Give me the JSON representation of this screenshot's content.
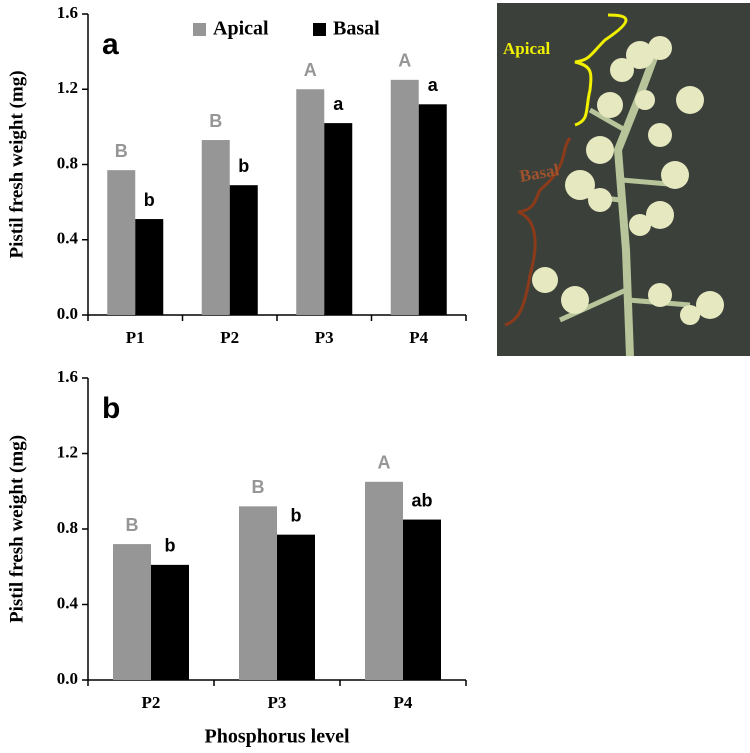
{
  "chart_data": [
    {
      "type": "bar",
      "panel_label": "a",
      "y_label": "Pistil fresh weight (mg)",
      "categories": [
        "P1",
        "P2",
        "P3",
        "P4"
      ],
      "series": [
        {
          "name": "Apical",
          "color": "#969696",
          "values": [
            0.77,
            0.93,
            1.2,
            1.25
          ],
          "letters": [
            "B",
            "B",
            "A",
            "A"
          ]
        },
        {
          "name": "Basal",
          "color": "#000000",
          "values": [
            0.51,
            0.69,
            1.02,
            1.12
          ],
          "letters": [
            "b",
            "b",
            "a",
            "a"
          ]
        }
      ],
      "ylim": [
        0,
        1.6
      ],
      "yticks": [
        {
          "value": 0,
          "label": "0.0"
        },
        0.4,
        0.8,
        1.2,
        1.6
      ],
      "legend": "top"
    },
    {
      "type": "bar",
      "panel_label": "b",
      "y_label": "Pistil fresh weight (mg)",
      "x_label": "Phosphorus level",
      "categories": [
        "P2",
        "P3",
        "P4"
      ],
      "series": [
        {
          "color": "#969696",
          "values": [
            0.72,
            0.92,
            1.05
          ],
          "letters": [
            "B",
            "B",
            "A"
          ]
        },
        {
          "color": "#000000",
          "values": [
            0.61,
            0.77,
            0.85
          ],
          "letters": [
            "b",
            "b",
            "ab"
          ]
        }
      ],
      "ylim": [
        0,
        1.6
      ],
      "yticks": [
        {
          "value": 0,
          "label": "0.0"
        },
        0.4,
        0.8,
        1.2,
        1.6
      ]
    }
  ],
  "photo": {
    "labels": [
      "Apical",
      "Basal"
    ]
  }
}
